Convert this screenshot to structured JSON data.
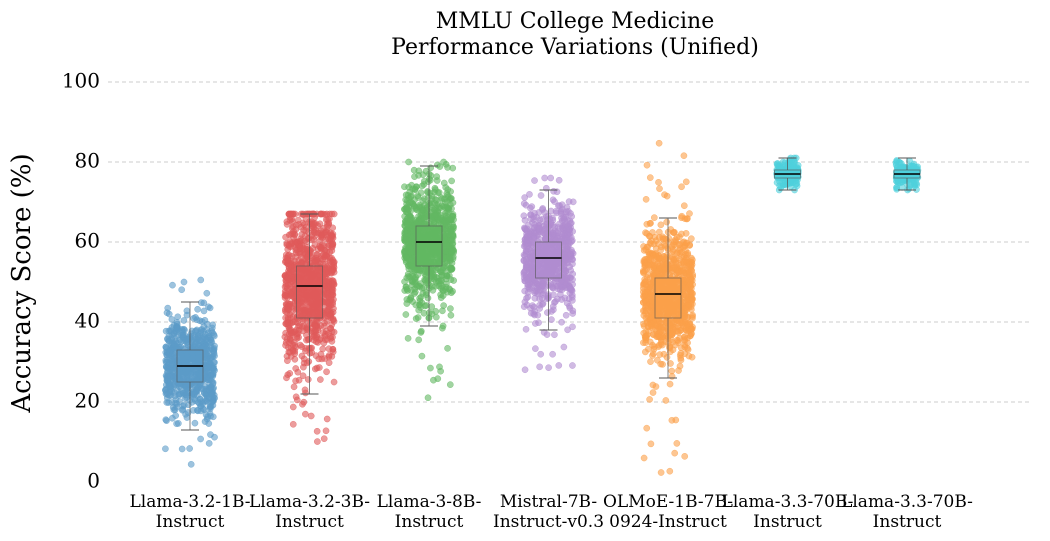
{
  "chart_data": {
    "type": "box",
    "title_line1": "MMLU College Medicine",
    "title_line2": "Performance Variations (Unified)",
    "xlabel": "",
    "ylabel": "Accuracy Score (%)",
    "ylim": [
      0,
      100
    ],
    "yticks": [
      0,
      20,
      40,
      60,
      80,
      100
    ],
    "grid": "y-dashed",
    "series": [
      {
        "label_line1": "Llama-3.2-1B-",
        "label_line2": "Instruct",
        "color": "#5b9bc8",
        "min": 13,
        "q1": 25,
        "median": 29,
        "q3": 33,
        "max": 45,
        "points_min": 3,
        "points_max": 52,
        "n_points": 700,
        "spread": 0.45
      },
      {
        "label_line1": "Llama-3.2-3B-",
        "label_line2": "Instruct",
        "color": "#e05a5a",
        "min": 22,
        "q1": 41,
        "median": 49,
        "q3": 54,
        "max": 67,
        "points_min": 10,
        "points_max": 67,
        "n_points": 900,
        "spread": 0.45
      },
      {
        "label_line1": "Llama-3-8B-",
        "label_line2": "Instruct",
        "color": "#62b862",
        "min": 39,
        "q1": 54,
        "median": 60,
        "q3": 64,
        "max": 79,
        "points_min": 15,
        "points_max": 80,
        "n_points": 900,
        "spread": 0.45
      },
      {
        "label_line1": "Mistral-7B-",
        "label_line2": "Instruct-v0.3",
        "color": "#b08cd0",
        "min": 38,
        "q1": 51,
        "median": 56,
        "q3": 60,
        "max": 73,
        "points_min": 28,
        "points_max": 76,
        "n_points": 700,
        "spread": 0.45
      },
      {
        "label_line1": "OLMoE-1B-7B-",
        "label_line2": "0924-Instruct",
        "color": "#fba04a",
        "min": 26,
        "q1": 41,
        "median": 47,
        "q3": 51,
        "max": 66,
        "points_min": 2,
        "points_max": 92,
        "n_points": 900,
        "spread": 0.45
      },
      {
        "label_line1": "Llama-3.3-70B-",
        "label_line2": "Instruct",
        "color": "#4fd0dc",
        "min": 73,
        "q1": 76,
        "median": 77,
        "q3": 78,
        "max": 81,
        "points_min": 73,
        "points_max": 81,
        "n_points": 180,
        "spread": 0.2
      },
      {
        "label_line1": "Llama-3.3-70B-",
        "label_line2": "Instruct",
        "color": "#4fd0dc",
        "min": 73,
        "q1": 76,
        "median": 77,
        "q3": 78,
        "max": 81,
        "points_min": 73,
        "points_max": 81,
        "n_points": 180,
        "spread": 0.2
      }
    ]
  }
}
